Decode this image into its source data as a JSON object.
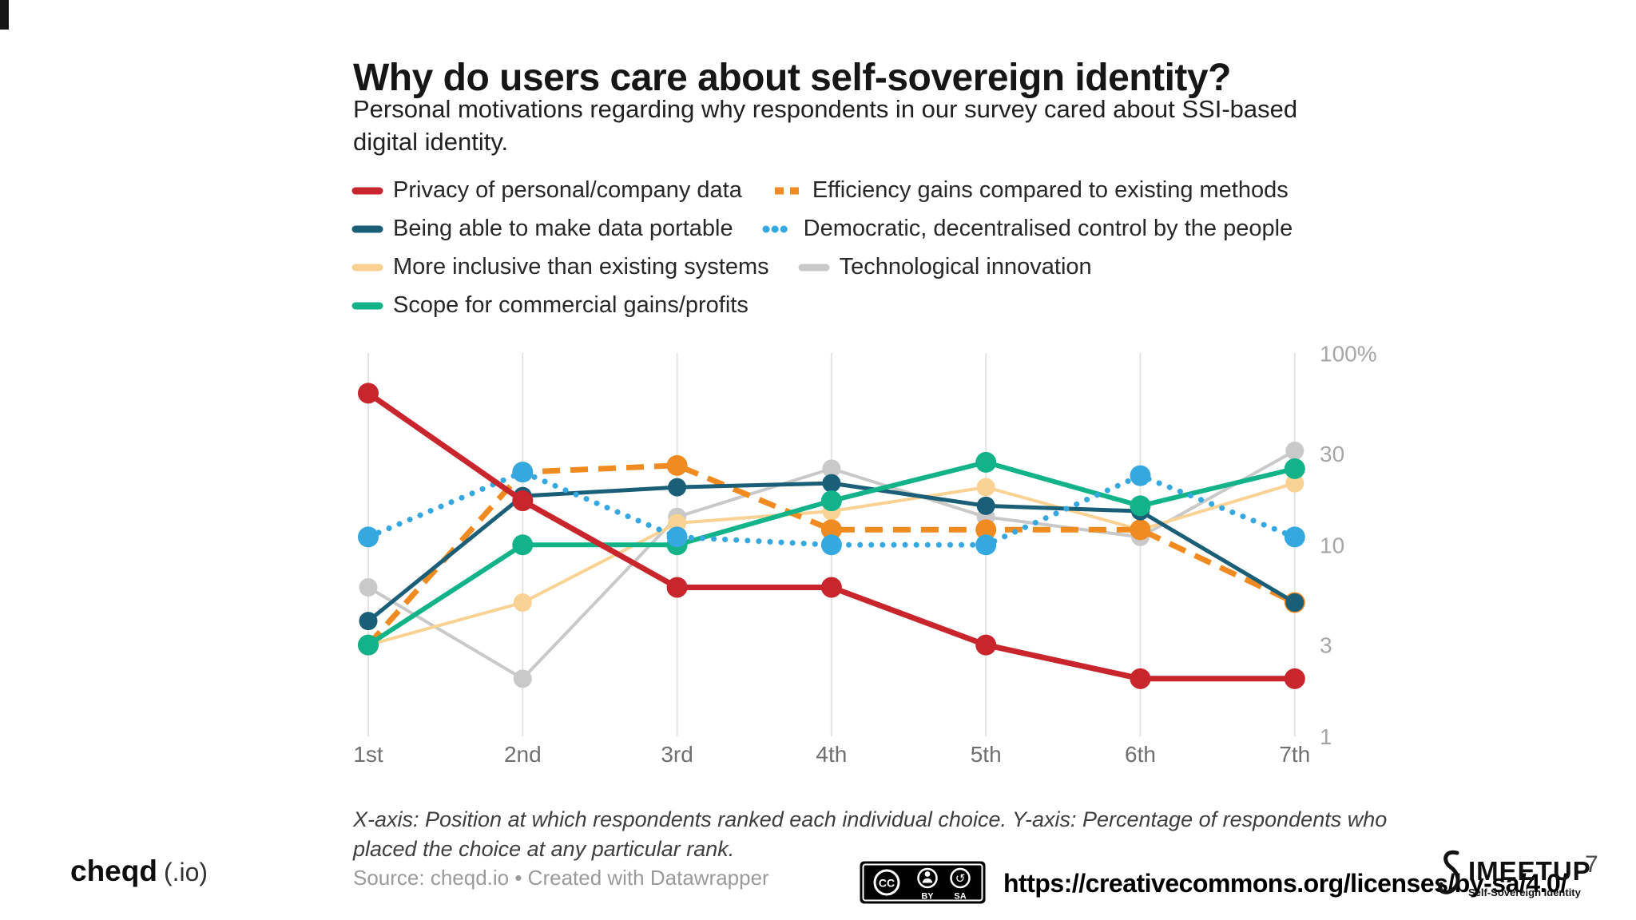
{
  "slide": {
    "title": "Why do users care about self-sovereign identity?",
    "subtitle": "Personal motivations regarding why respondents in our survey cared about SSI-based digital identity.",
    "caption": "X-axis: Position at which respondents ranked each individual choice. Y-axis: Percentage of respondents who placed the choice at any particular rank.",
    "source": "Source: cheqd.io • Created with Datawrapper",
    "page_number": "7"
  },
  "footer": {
    "brand": "cheqd",
    "brand_suffix": "(.io)",
    "license_url": "https://creativecommons.org/licenses/by-sa/4.0/",
    "cc_badge": {
      "cc": "CC",
      "by": "BY",
      "sa": "SA"
    },
    "ssi_logo": {
      "text": "IMEETUP",
      "subtext": "Self-Sovereign Identity"
    }
  },
  "chart_data": {
    "type": "line",
    "title": "Why do users care about self-sovereign identity?",
    "xlabel": "Position at which respondents ranked each individual choice",
    "ylabel": "Percentage of respondents who placed the choice at any particular rank",
    "x_categories": [
      "1st",
      "2nd",
      "3rd",
      "4th",
      "5th",
      "6th",
      "7th"
    ],
    "y_scale": "log",
    "ylim": [
      1,
      100
    ],
    "y_ticks": [
      {
        "value": 100,
        "label": "100%"
      },
      {
        "value": 30,
        "label": "30"
      },
      {
        "value": 10,
        "label": "10"
      },
      {
        "value": 3,
        "label": "3"
      },
      {
        "value": 1,
        "label": "1"
      }
    ],
    "grid": "vertical",
    "legend_position": "top",
    "legend_rows": [
      [
        0,
        1
      ],
      [
        2,
        3
      ],
      [
        4,
        5
      ],
      [
        6
      ]
    ],
    "draw_order": [
      5,
      4,
      1,
      2,
      6,
      3,
      0
    ],
    "series": [
      {
        "name": "Privacy of personal/company data",
        "color": "#c9252d",
        "style": "solid",
        "width": 7,
        "values": [
          62,
          17,
          6,
          6,
          3,
          2,
          2
        ]
      },
      {
        "name": "Efficiency gains compared to existing methods",
        "color": "#f08b22",
        "style": "dashed",
        "width": 7,
        "values": [
          3,
          24,
          26,
          12,
          12,
          12,
          5
        ]
      },
      {
        "name": "Being able to make data portable",
        "color": "#1a5e78",
        "style": "solid",
        "width": 5,
        "values": [
          4,
          18,
          20,
          21,
          16,
          15,
          5
        ]
      },
      {
        "name": "Democratic, decentralised control by the people",
        "color": "#35a8e0",
        "style": "dotted",
        "width": 7,
        "values": [
          11,
          24,
          11,
          10,
          10,
          23,
          11
        ]
      },
      {
        "name": "More inclusive than existing systems",
        "color": "#fad293",
        "style": "solid",
        "width": 4,
        "values": [
          3,
          5,
          13,
          15,
          20,
          12,
          21
        ]
      },
      {
        "name": "Technological innovation",
        "color": "#c9c9c9",
        "style": "solid",
        "width": 4,
        "values": [
          6,
          2,
          14,
          25,
          14,
          11,
          31
        ]
      },
      {
        "name": "Scope for commercial gains/profits",
        "color": "#12b388",
        "style": "solid",
        "width": 6,
        "values": [
          3,
          10,
          10,
          17,
          27,
          16,
          25
        ]
      }
    ]
  }
}
